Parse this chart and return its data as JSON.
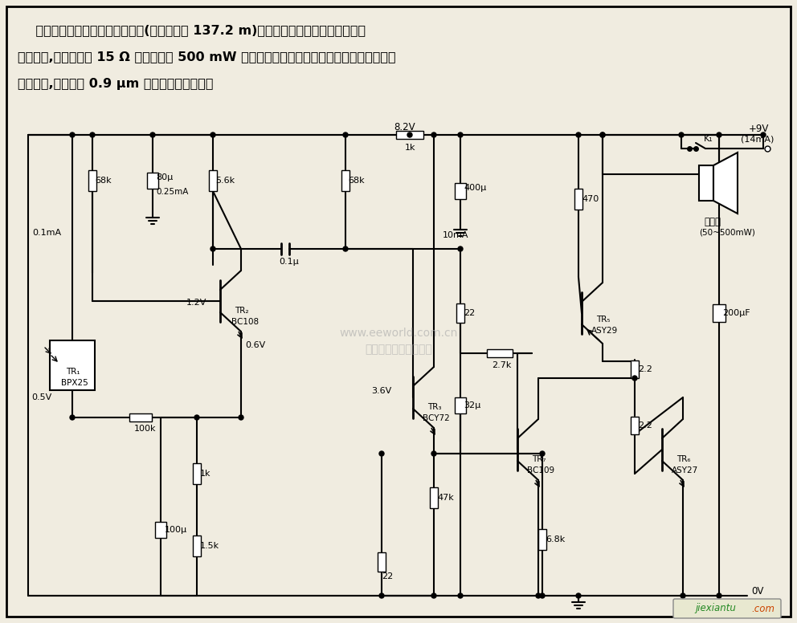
{
  "bg_color": "#f0ece0",
  "border_color": "#000000",
  "text_color": "#000000",
  "description_lines": [
    "    当光电管被适当的红外光发射机(发射距离为 137.2 m)的声音调制发光二极管所发出的",
    "光照射时,本电路能给 15 Ω 扬声器提供 500 mW 的最大输出。该系统适用于架设电线线路不方",
    "便的场合,在波长为 0.9 μm 左右的条件下使用。"
  ],
  "watermark": "杭州猎宝科技有限公司",
  "watermark2": "www.eeworld.com.cn"
}
